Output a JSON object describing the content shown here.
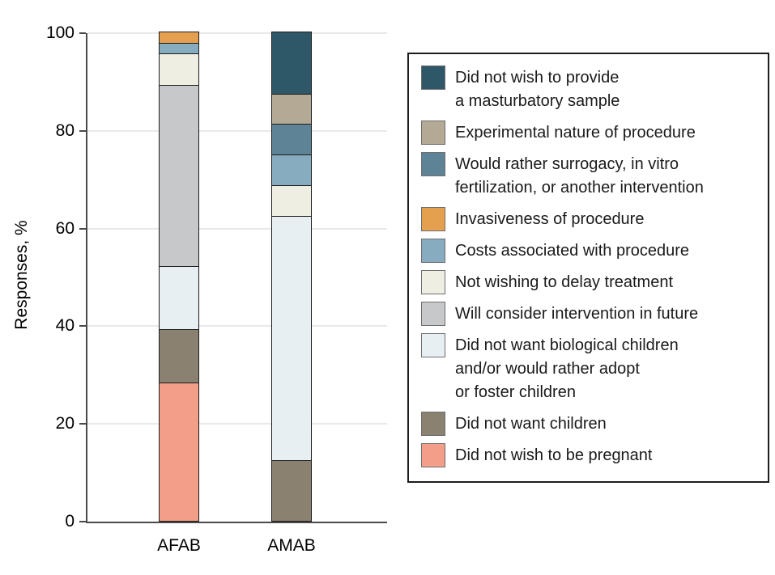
{
  "chart_data": {
    "type": "bar",
    "stacked": true,
    "title": "",
    "xlabel": "",
    "ylabel": "Responses, %",
    "categories": [
      "AFAB",
      "AMAB"
    ],
    "ylim": [
      0,
      100
    ],
    "yticks": [
      0,
      20,
      40,
      60,
      80,
      100
    ],
    "grid": true,
    "legend_position": "right",
    "series": [
      {
        "name": "Did not wish to be pregnant",
        "color": "#f29e88",
        "values": [
          28.3,
          0
        ]
      },
      {
        "name": "Did not want children",
        "color": "#8a8171",
        "values": [
          10.9,
          12.5
        ]
      },
      {
        "name": "Did not want biological children and/or would rather adopt or foster children",
        "color": "#e7eff3",
        "values": [
          13.0,
          50.0
        ]
      },
      {
        "name": "Will consider intervention in future",
        "color": "#c6c8ca",
        "values": [
          37.0,
          0
        ]
      },
      {
        "name": "Not wishing to delay treatment",
        "color": "#efeee2",
        "values": [
          6.5,
          6.25
        ]
      },
      {
        "name": "Costs associated with procedure",
        "color": "#87abbf",
        "values": [
          2.2,
          6.25
        ]
      },
      {
        "name": "Invasiveness of procedure",
        "color": "#e5a04f",
        "values": [
          2.1,
          0
        ]
      },
      {
        "name": "Would rather surrogacy, in vitro fertilization, or another intervention",
        "color": "#5e8396",
        "values": [
          0,
          6.25
        ]
      },
      {
        "name": "Experimental nature of procedure",
        "color": "#b3a995",
        "values": [
          0,
          6.25
        ]
      },
      {
        "name": "Did not wish to provide a masturbatory sample",
        "color": "#2e5767",
        "values": [
          0,
          12.5
        ]
      }
    ]
  },
  "legend": {
    "items": [
      {
        "label": "Did not wish to provide\na masturbatory sample",
        "color": "#2e5767"
      },
      {
        "label": "Experimental nature of procedure",
        "color": "#b3a995"
      },
      {
        "label": "Would rather surrogacy, in vitro\nfertilization, or another intervention",
        "color": "#5e8396"
      },
      {
        "label": "Invasiveness of procedure",
        "color": "#e5a04f"
      },
      {
        "label": "Costs associated with procedure",
        "color": "#87abbf"
      },
      {
        "label": "Not wishing to delay treatment",
        "color": "#efeee2"
      },
      {
        "label": "Will consider intervention in future",
        "color": "#c6c8ca"
      },
      {
        "label": "Did not want biological children\nand/or would rather adopt\nor foster children",
        "color": "#e7eff3"
      },
      {
        "label": "Did not want children",
        "color": "#8a8171"
      },
      {
        "label": "Did not wish to be pregnant",
        "color": "#f29e88"
      }
    ]
  }
}
